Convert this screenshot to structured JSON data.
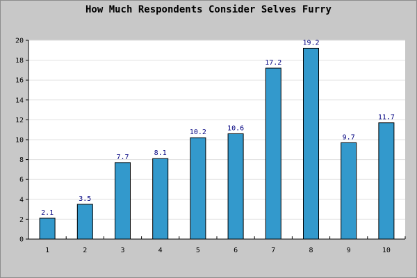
{
  "chart_data": {
    "type": "bar",
    "title": "How Much Respondents Consider Selves Furry",
    "xlabel": "",
    "ylabel": "",
    "categories": [
      "1",
      "2",
      "3",
      "4",
      "5",
      "6",
      "7",
      "8",
      "9",
      "10"
    ],
    "values": [
      2.1,
      3.5,
      7.7,
      8.1,
      10.2,
      10.6,
      17.2,
      19.2,
      9.7,
      11.7
    ],
    "data_labels": [
      "2.1",
      "3.5",
      "7.7",
      "8.1",
      "10.2",
      "10.6",
      "17.2",
      "19.2",
      "9.7",
      "11.7"
    ],
    "ylim": [
      0,
      20
    ],
    "yticks": [
      0,
      2,
      4,
      6,
      8,
      10,
      12,
      14,
      16,
      18,
      20
    ],
    "grid": true,
    "colors": {
      "bar": "#3399cc",
      "bar_border": "#000000",
      "plot_bg": "#ffffff",
      "frame_bg": "#c8c8c8",
      "grid": "#e0e0e0",
      "data_label": "#000080"
    }
  }
}
